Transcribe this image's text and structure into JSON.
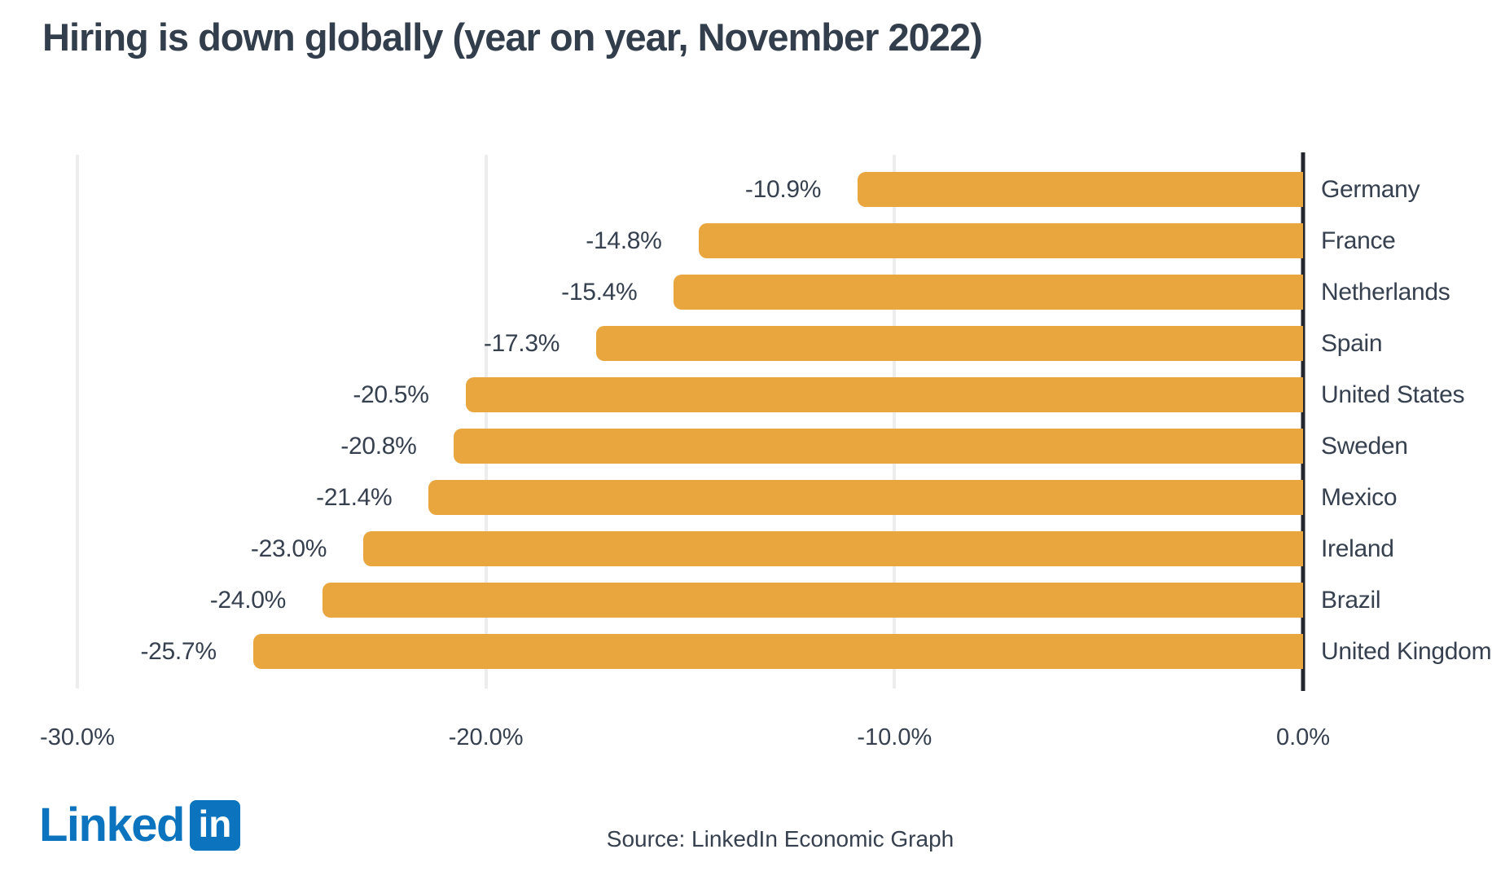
{
  "title": "Hiring is down globally (year on year, November 2022)",
  "chart_data": {
    "type": "bar",
    "orientation": "horizontal",
    "title": "Hiring is down globally (year on year, November 2022)",
    "categories": [
      "Germany",
      "France",
      "Netherlands",
      "Spain",
      "United States",
      "Sweden",
      "Mexico",
      "Ireland",
      "Brazil",
      "United Kingdom"
    ],
    "values": [
      -10.9,
      -14.8,
      -15.4,
      -17.3,
      -20.5,
      -20.8,
      -21.4,
      -23.0,
      -24.0,
      -25.7
    ],
    "value_labels": [
      "-10.9%",
      "-14.8%",
      "-15.4%",
      "-17.3%",
      "-20.5%",
      "-20.8%",
      "-21.4%",
      "-23.0%",
      "-24.0%",
      "-25.7%"
    ],
    "category_side": "right",
    "xlim": [
      -30,
      0
    ],
    "x_ticks": [
      {
        "value": -30,
        "label": "-30.0%"
      },
      {
        "value": -20,
        "label": "-20.0%"
      },
      {
        "value": -10,
        "label": "-10.0%"
      },
      {
        "value": 0,
        "label": "0.0%"
      }
    ],
    "grid": "vertical-light",
    "legend": "none",
    "bar_color": "#e9a53e"
  },
  "colors": {
    "bar": "#e9a53e",
    "text": "#36404e",
    "title": "#333e4c",
    "axis": "#23272d",
    "gridline": "#ededed",
    "linkedin_blue": "#0c74bf",
    "background": "#ffffff"
  },
  "footer": {
    "logo_word": "Linked",
    "logo_badge": "in",
    "source_text": "Source: LinkedIn Economic Graph"
  }
}
